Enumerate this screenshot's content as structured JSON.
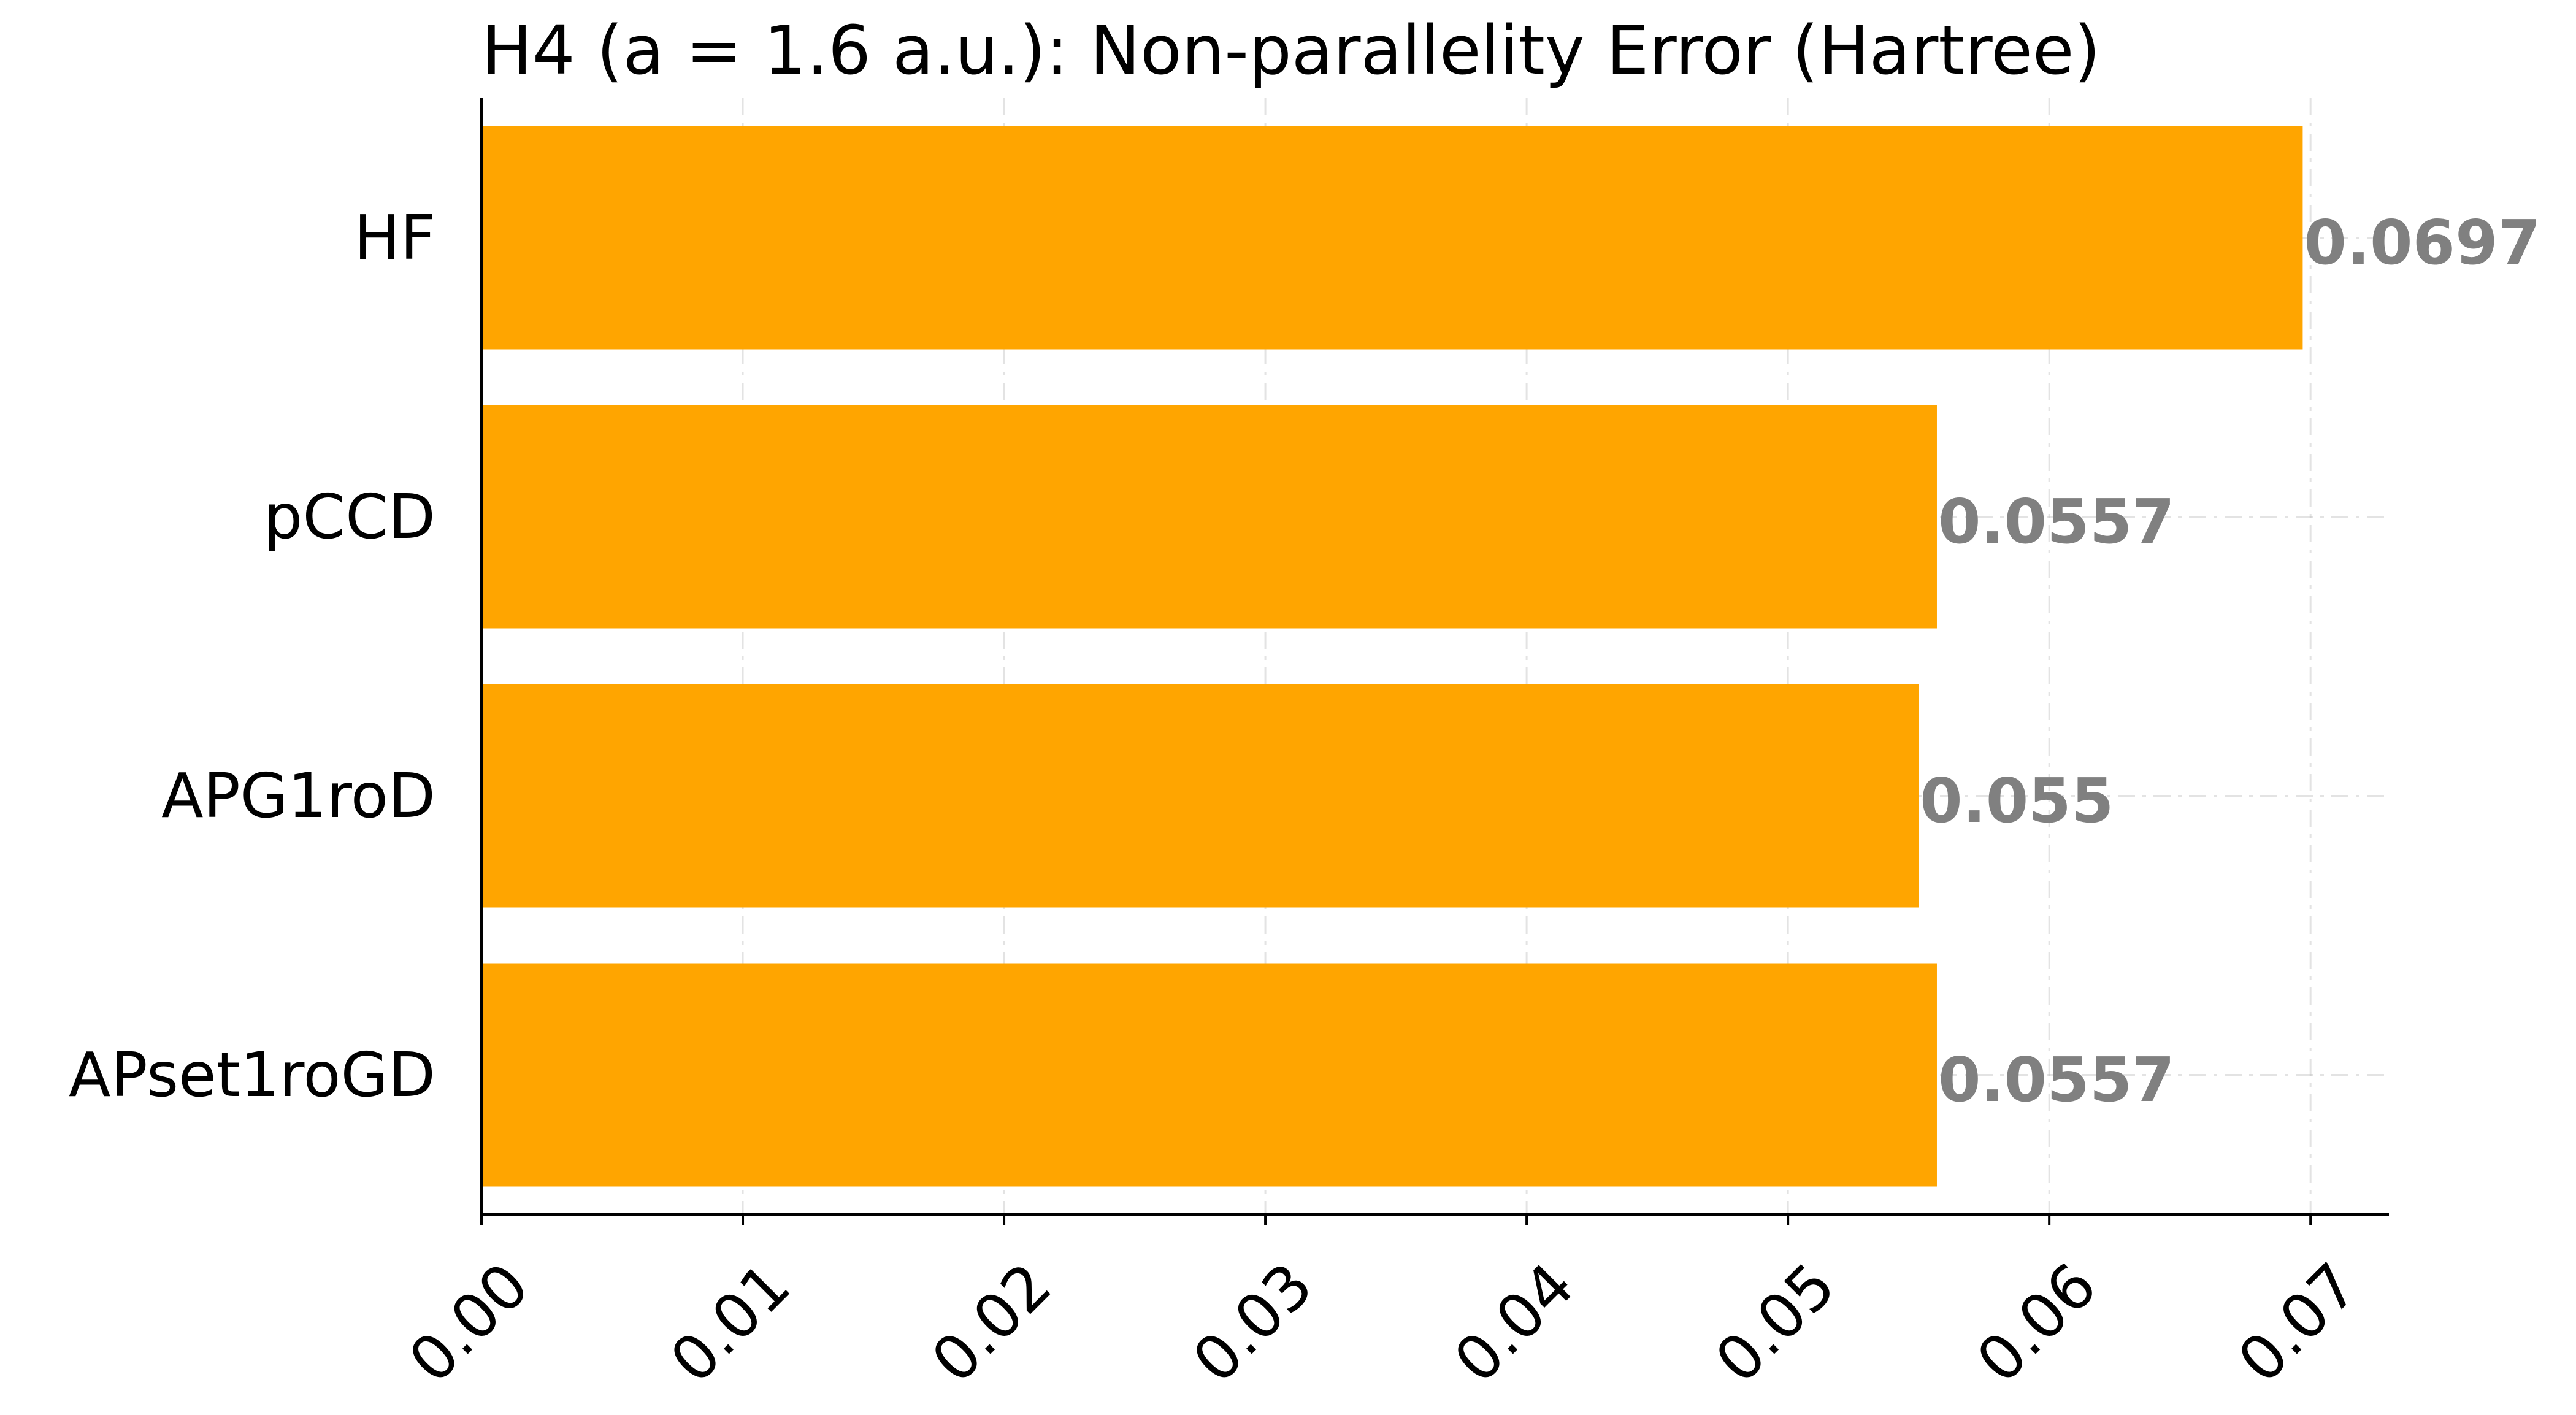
{
  "chart_data": {
    "type": "bar",
    "orientation": "horizontal",
    "title": "H4 (a = 1.6 a.u.): Non-parallelity Error (Hartree)",
    "xlabel": "",
    "ylabel": "",
    "categories": [
      "HF",
      "pCCD",
      "APG1roD",
      "APset1roGD"
    ],
    "values": [
      0.0697,
      0.0557,
      0.055,
      0.0557
    ],
    "value_labels": [
      "0.0697",
      "0.0557",
      "0.055",
      "0.0557"
    ],
    "xlim": [
      0,
      0.073
    ],
    "xticks": [
      0.0,
      0.01,
      0.02,
      0.03,
      0.04,
      0.05,
      0.06,
      0.07
    ],
    "xtick_labels": [
      "0.00",
      "0.01",
      "0.02",
      "0.03",
      "0.04",
      "0.05",
      "0.06",
      "0.07"
    ],
    "grid": true,
    "legend": "none",
    "colors": {
      "bar": "#FFA500",
      "value_label": "#808080",
      "grid": "#b0b0b0",
      "axis": "#000000"
    }
  }
}
